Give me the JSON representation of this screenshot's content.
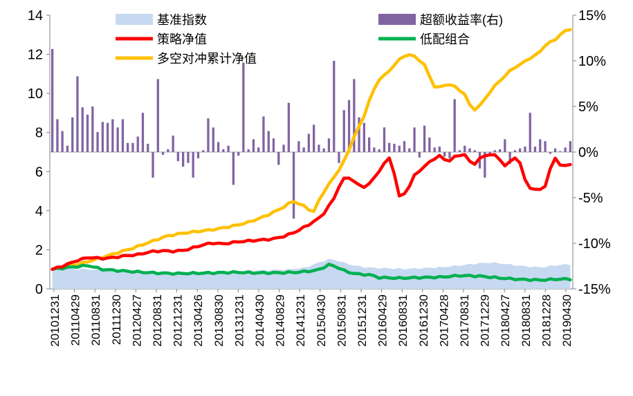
{
  "chart_data": {
    "type": "line",
    "title": "",
    "left_axis": {
      "min": 0,
      "max": 14,
      "ticks": [
        0,
        2,
        4,
        6,
        8,
        10,
        12,
        14
      ],
      "labels": [
        "0",
        "2",
        "4",
        "6",
        "8",
        "10",
        "12",
        "14"
      ]
    },
    "right_axis": {
      "min": -15,
      "max": 15,
      "ticks": [
        -15,
        -10,
        -5,
        0,
        5,
        10,
        15
      ],
      "labels": [
        "-15%",
        "-10%",
        "-5%",
        "0%",
        "5%",
        "10%",
        "15%"
      ]
    },
    "x_tick_labels": [
      "20101231",
      "20110429",
      "20110831",
      "20111230",
      "20120427",
      "20120831",
      "20121231",
      "20130426",
      "20130830",
      "20131231",
      "20140430",
      "20140829",
      "20141231",
      "20150430",
      "20150831",
      "20151231",
      "20160429",
      "20160831",
      "20161230",
      "20170428",
      "20170831",
      "20171229",
      "20180427",
      "20180831",
      "20181228",
      "20190430"
    ],
    "legend": [
      {
        "name": "基准指数",
        "color": "#c6d9f1",
        "kind": "area"
      },
      {
        "name": "超额收益率(右)",
        "color": "#8064a2",
        "kind": "bar"
      },
      {
        "name": "策略净值",
        "color": "#ff0000",
        "kind": "line"
      },
      {
        "name": "低配组合",
        "color": "#00b050",
        "kind": "line"
      },
      {
        "name": "多空对冲累计净值",
        "color": "#ffc000",
        "kind": "line"
      }
    ],
    "n_points": 104,
    "series": [
      {
        "name": "策略净值",
        "axis": "left",
        "color": "#ff0000",
        "keypoints": [
          [
            0,
            1.0
          ],
          [
            3,
            1.2
          ],
          [
            6,
            1.45
          ],
          [
            9,
            1.62
          ],
          [
            12,
            1.55
          ],
          [
            15,
            1.6
          ],
          [
            18,
            1.7
          ],
          [
            21,
            1.75
          ],
          [
            24,
            1.9
          ],
          [
            27,
            1.95
          ],
          [
            30,
            1.92
          ],
          [
            33,
            2.0
          ],
          [
            36,
            2.2
          ],
          [
            39,
            2.35
          ],
          [
            42,
            2.3
          ],
          [
            45,
            2.4
          ],
          [
            48,
            2.45
          ],
          [
            51,
            2.5
          ],
          [
            54,
            2.55
          ],
          [
            57,
            2.7
          ],
          [
            60,
            2.95
          ],
          [
            63,
            3.3
          ],
          [
            66,
            3.7
          ],
          [
            69,
            4.6
          ],
          [
            71,
            5.6
          ],
          [
            73,
            5.7
          ],
          [
            75,
            5.3
          ],
          [
            77,
            5.2
          ],
          [
            79,
            5.7
          ],
          [
            81,
            6.3
          ],
          [
            83,
            6.8
          ],
          [
            85,
            4.7
          ],
          [
            87,
            5.0
          ],
          [
            89,
            5.9
          ],
          [
            91,
            6.2
          ],
          [
            93,
            6.6
          ],
          [
            95,
            6.8
          ],
          [
            97,
            6.5
          ],
          [
            99,
            6.8
          ],
          [
            101,
            6.9
          ],
          [
            103,
            6.3
          ],
          [
            105,
            6.7
          ],
          [
            107,
            6.9
          ],
          [
            109,
            6.8
          ],
          [
            111,
            6.3
          ],
          [
            113,
            6.6
          ],
          [
            114,
            6.9
          ],
          [
            116,
            5.5
          ],
          [
            117,
            5.2
          ],
          [
            119,
            5.0
          ],
          [
            121,
            5.3
          ],
          [
            123,
            6.8
          ],
          [
            125,
            6.2
          ],
          [
            127,
            6.4
          ]
        ]
      },
      {
        "name": "低配组合",
        "axis": "left",
        "color": "#00b050",
        "keypoints": [
          [
            0,
            1.0
          ],
          [
            5,
            1.12
          ],
          [
            9,
            1.2
          ],
          [
            12,
            1.0
          ],
          [
            15,
            0.95
          ],
          [
            20,
            0.88
          ],
          [
            25,
            0.82
          ],
          [
            30,
            0.78
          ],
          [
            35,
            0.8
          ],
          [
            40,
            0.82
          ],
          [
            45,
            0.85
          ],
          [
            50,
            0.82
          ],
          [
            55,
            0.82
          ],
          [
            60,
            0.85
          ],
          [
            65,
            0.95
          ],
          [
            68,
            1.25
          ],
          [
            70,
            1.1
          ],
          [
            72,
            0.88
          ],
          [
            75,
            0.75
          ],
          [
            78,
            0.72
          ],
          [
            80,
            0.58
          ],
          [
            85,
            0.55
          ],
          [
            90,
            0.58
          ],
          [
            95,
            0.6
          ],
          [
            100,
            0.68
          ],
          [
            105,
            0.65
          ],
          [
            110,
            0.55
          ],
          [
            115,
            0.48
          ],
          [
            120,
            0.45
          ],
          [
            124,
            0.5
          ],
          [
            127,
            0.5
          ]
        ]
      },
      {
        "name": "多空对冲累计净值",
        "axis": "left",
        "color": "#ffc000",
        "keypoints": [
          [
            0,
            1.0
          ],
          [
            4,
            1.15
          ],
          [
            8,
            1.35
          ],
          [
            12,
            1.6
          ],
          [
            16,
            1.85
          ],
          [
            20,
            2.1
          ],
          [
            24,
            2.4
          ],
          [
            28,
            2.7
          ],
          [
            32,
            2.85
          ],
          [
            36,
            2.95
          ],
          [
            40,
            3.05
          ],
          [
            44,
            3.2
          ],
          [
            48,
            3.4
          ],
          [
            52,
            3.7
          ],
          [
            56,
            4.1
          ],
          [
            59,
            4.5
          ],
          [
            62,
            4.2
          ],
          [
            64,
            3.9
          ],
          [
            66,
            4.8
          ],
          [
            68,
            5.4
          ],
          [
            70,
            6.0
          ],
          [
            72,
            6.7
          ],
          [
            74,
            7.8
          ],
          [
            76,
            8.6
          ],
          [
            78,
            9.8
          ],
          [
            80,
            10.7
          ],
          [
            82,
            11.0
          ],
          [
            84,
            11.5
          ],
          [
            86,
            11.9
          ],
          [
            88,
            12.0
          ],
          [
            90,
            11.7
          ],
          [
            92,
            11.3
          ],
          [
            93,
            10.4
          ],
          [
            95,
            10.3
          ],
          [
            97,
            10.5
          ],
          [
            99,
            10.3
          ],
          [
            101,
            10.0
          ],
          [
            103,
            9.1
          ],
          [
            105,
            9.4
          ],
          [
            107,
            10.0
          ],
          [
            109,
            10.5
          ],
          [
            111,
            10.9
          ],
          [
            113,
            11.3
          ],
          [
            115,
            11.5
          ],
          [
            117,
            11.8
          ],
          [
            119,
            12.0
          ],
          [
            121,
            12.5
          ],
          [
            123,
            12.7
          ],
          [
            125,
            13.1
          ],
          [
            127,
            13.3
          ]
        ]
      },
      {
        "name": "基准指数",
        "axis": "left",
        "color": "#c6d9f1",
        "keypoints": [
          [
            0,
            1.0
          ],
          [
            5,
            1.02
          ],
          [
            9,
            1.0
          ],
          [
            12,
            0.95
          ],
          [
            18,
            0.9
          ],
          [
            25,
            0.88
          ],
          [
            32,
            0.88
          ],
          [
            38,
            0.9
          ],
          [
            45,
            0.92
          ],
          [
            52,
            0.95
          ],
          [
            58,
            1.0
          ],
          [
            62,
            1.08
          ],
          [
            66,
            1.4
          ],
          [
            68,
            1.52
          ],
          [
            70,
            1.45
          ],
          [
            72,
            1.3
          ],
          [
            75,
            1.15
          ],
          [
            78,
            1.08
          ],
          [
            82,
            1.05
          ],
          [
            86,
            1.02
          ],
          [
            90,
            1.05
          ],
          [
            95,
            1.1
          ],
          [
            100,
            1.2
          ],
          [
            104,
            1.3
          ],
          [
            108,
            1.35
          ],
          [
            112,
            1.25
          ],
          [
            116,
            1.15
          ],
          [
            120,
            1.1
          ],
          [
            124,
            1.22
          ],
          [
            127,
            1.25
          ]
        ]
      }
    ],
    "bars": {
      "name": "超额收益率(右)",
      "axis": "right",
      "color": "#8064a2",
      "unit": "%",
      "values": [
        11.3,
        3.6,
        2.3,
        0.7,
        3.8,
        8.3,
        4.9,
        4.1,
        5.0,
        2.2,
        3.3,
        3.2,
        3.6,
        2.7,
        3.6,
        1.0,
        1.0,
        1.7,
        4.3,
        0.9,
        -2.8,
        8.0,
        -0.3,
        0.3,
        1.8,
        -1.0,
        -1.6,
        -1.2,
        -2.8,
        -0.7,
        0.2,
        3.7,
        2.7,
        1.1,
        0.3,
        0.7,
        -3.6,
        -0.4,
        9.8,
        0.3,
        1.4,
        0.5,
        3.9,
        2.3,
        1.5,
        -1.4,
        0.8,
        5.4,
        -7.3,
        1.2,
        0.5,
        2.0,
        3.0,
        0.8,
        0.4,
        1.5,
        10.0,
        -1.2,
        4.6,
        5.7,
        8.0,
        3.8,
        3.2,
        1.6,
        0.5,
        0.3,
        2.7,
        1.0,
        0.9,
        0.7,
        1.2,
        0.4,
        2.7,
        -0.6,
        2.9,
        1.6,
        0.5,
        0.6,
        -0.5,
        -0.7,
        5.8,
        0.2,
        0.7,
        0.4,
        0.2,
        -1.8,
        -2.8,
        -0.2,
        0.2,
        0.3,
        1.4,
        -1.3,
        0.2,
        0.4,
        0.6,
        4.3,
        0.6,
        1.4,
        1.2,
        -0.2,
        0.4,
        0.1,
        0.5,
        1.2
      ]
    }
  }
}
